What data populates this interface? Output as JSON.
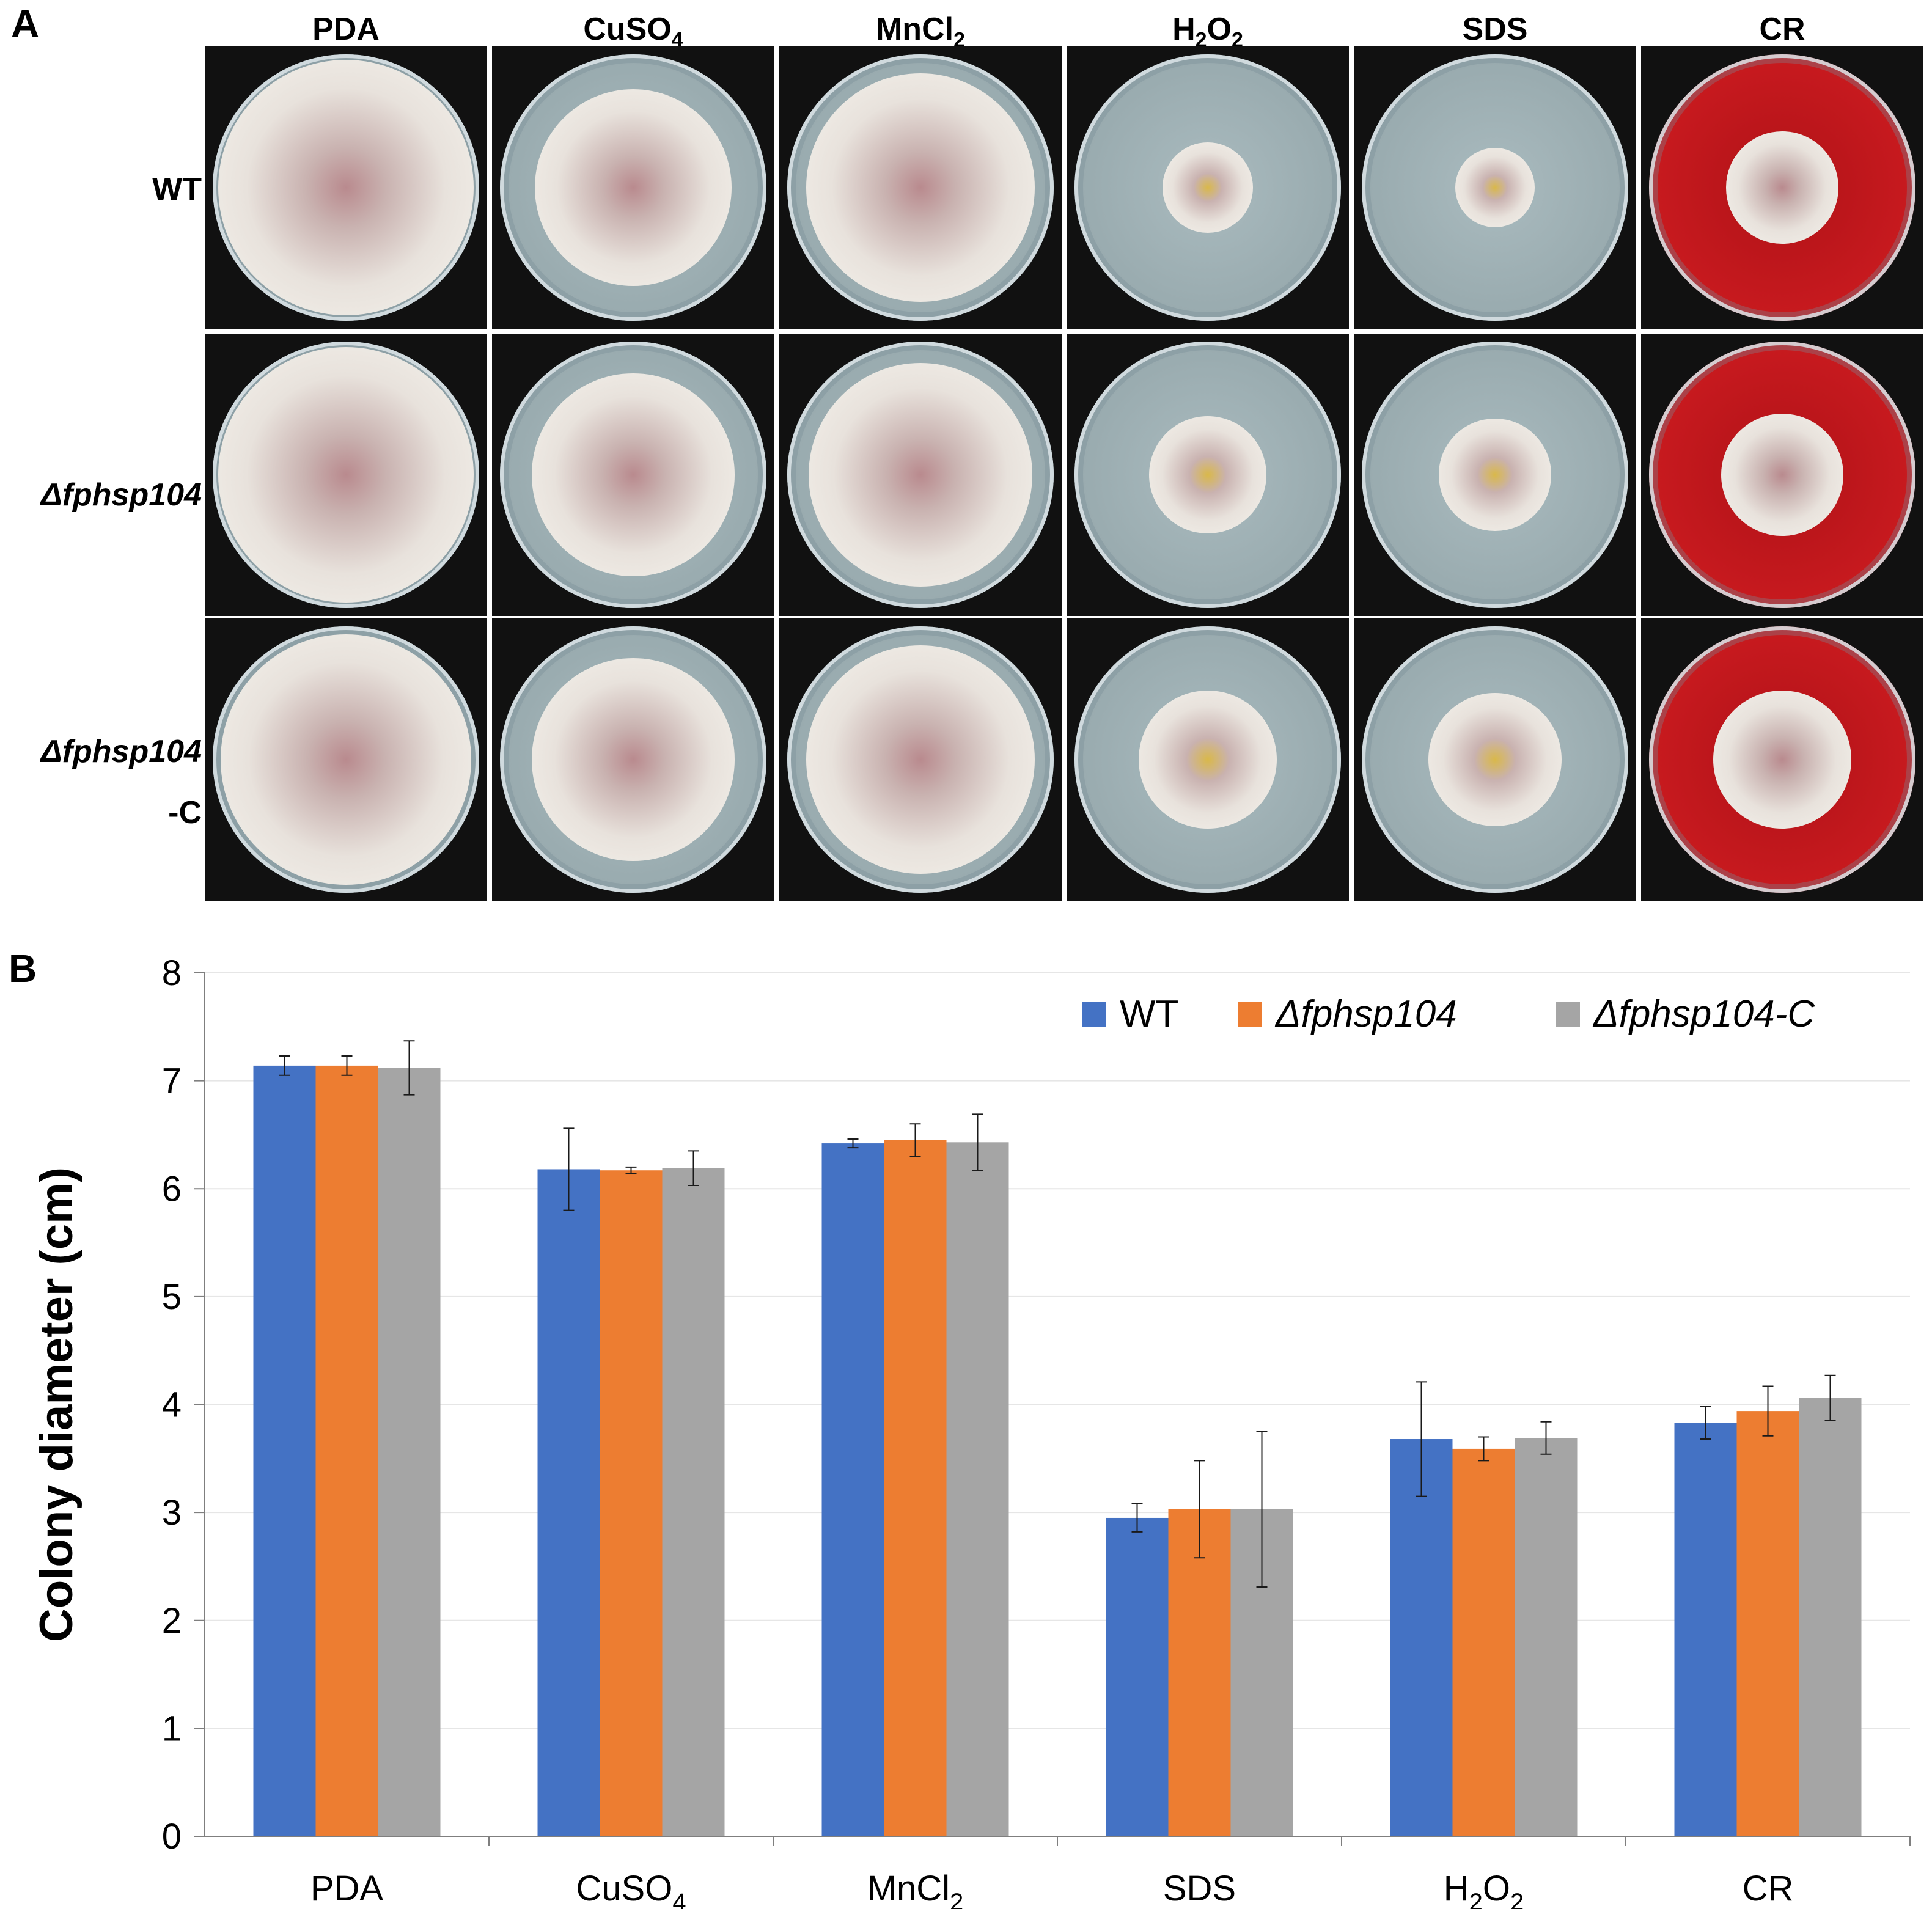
{
  "panel_a": {
    "letter": "A",
    "columns": [
      {
        "main": "PDA",
        "sub": "",
        "tail": ""
      },
      {
        "main": "CuSO",
        "sub": "4",
        "tail": ""
      },
      {
        "main": "MnCl",
        "sub": "2",
        "tail": ""
      },
      {
        "main": "H",
        "sub": "2",
        "tail": "O",
        "sub2": "2"
      },
      {
        "main": "SDS",
        "sub": "",
        "tail": ""
      },
      {
        "main": "CR",
        "sub": "",
        "tail": ""
      }
    ],
    "rows": [
      {
        "label": "WT",
        "label2": ""
      },
      {
        "label": "Δfphsp104",
        "label2": ""
      },
      {
        "label": "Δfphsp104",
        "label2": "-C"
      }
    ],
    "colors": {
      "agar": "#9fb0b4",
      "red_agar": "#c0141b",
      "background": "#111111"
    }
  },
  "panel_b": {
    "letter": "B"
  },
  "chart_data": {
    "type": "bar",
    "title": "",
    "xlabel": "",
    "ylabel": "Colony diameter (cm)",
    "ylim": [
      0,
      8
    ],
    "yticks": [
      "0",
      "1",
      "2",
      "3",
      "4",
      "5",
      "6",
      "7",
      "8"
    ],
    "categories": [
      "PDA",
      "CuSO4",
      "MnCl2",
      "SDS",
      "H2O2",
      "CR"
    ],
    "category_display": [
      {
        "main": "PDA",
        "sub": ""
      },
      {
        "main": "CuSO",
        "sub": "4"
      },
      {
        "main": "MnCl",
        "sub": "2"
      },
      {
        "main": "SDS",
        "sub": ""
      },
      {
        "main": "H",
        "sub": "2",
        "tail": "O",
        "sub2": "2"
      },
      {
        "main": "CR",
        "sub": ""
      }
    ],
    "series": [
      {
        "name": "WT",
        "color": "#4472C4",
        "italic": false,
        "values": [
          7.14,
          6.18,
          6.42,
          2.95,
          3.68,
          3.83
        ],
        "errors": [
          0.09,
          0.38,
          0.04,
          0.13,
          0.53,
          0.15
        ]
      },
      {
        "name": "Δfphsp104",
        "color": "#ED7D31",
        "italic": true,
        "values": [
          7.14,
          6.17,
          6.45,
          3.03,
          3.59,
          3.94
        ],
        "errors": [
          0.09,
          0.03,
          0.15,
          0.45,
          0.11,
          0.23
        ]
      },
      {
        "name": "Δfphsp104-C",
        "color": "#A5A5A5",
        "italic": true,
        "values": [
          7.12,
          6.19,
          6.43,
          3.03,
          3.69,
          4.06
        ],
        "errors": [
          0.25,
          0.16,
          0.26,
          0.72,
          0.15,
          0.21
        ]
      }
    ],
    "grid": true,
    "legend": "top-right"
  }
}
